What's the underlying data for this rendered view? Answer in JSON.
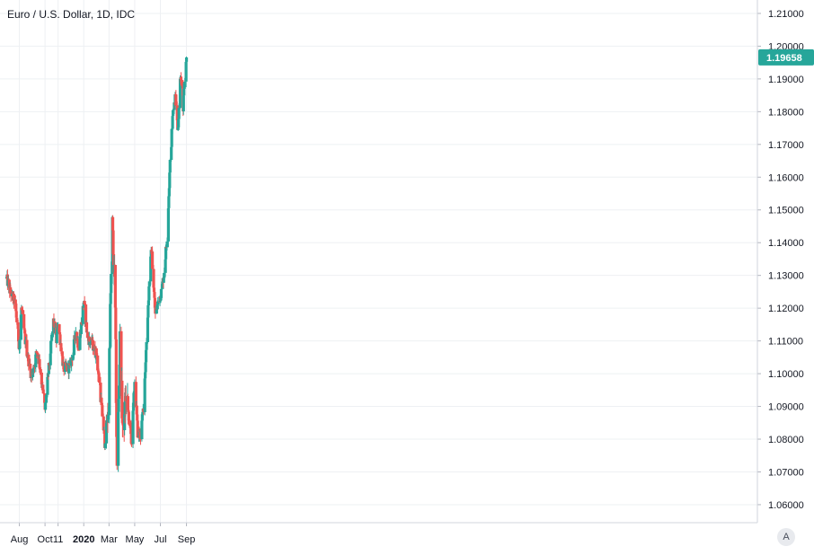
{
  "header": {
    "title": "Euro / U.S. Dollar, 1D, IDC"
  },
  "price_axis": {
    "ticks": [
      "1.06000",
      "1.07000",
      "1.08000",
      "1.09000",
      "1.10000",
      "1.11000",
      "1.12000",
      "1.13000",
      "1.14000",
      "1.15000",
      "1.16000",
      "1.17000",
      "1.18000",
      "1.19000",
      "1.20000",
      "1.21000"
    ],
    "last_price_label": "1.19658"
  },
  "time_axis": {
    "ticks": [
      "Aug",
      "Oct",
      "11",
      "2020",
      "Mar",
      "May",
      "Jul",
      "Sep"
    ]
  },
  "controls": {
    "scale_button": "A"
  },
  "colors": {
    "up": "#26a69a",
    "down": "#ef5350",
    "grid": "#eef0f3",
    "last_price_bg": "#26a69a"
  },
  "chart_data": {
    "type": "candlestick",
    "title": "Euro / U.S. Dollar, 1D, IDC",
    "symbol": "EURUSD",
    "interval": "1D",
    "ylim": [
      1.0545,
      1.2141
    ],
    "grid": true,
    "last_price": 1.19658,
    "series": [
      {
        "name": "Euro / U.S. Dollar",
        "keypoints": [
          [
            "2019-07-02",
            1.129
          ],
          [
            "2019-07-10",
            1.125
          ],
          [
            "2019-07-22",
            1.1215
          ],
          [
            "2019-08-01",
            1.108
          ],
          [
            "2019-08-06",
            1.12
          ],
          [
            "2019-08-16",
            1.109
          ],
          [
            "2019-08-30",
            1.099
          ],
          [
            "2019-09-12",
            1.107
          ],
          [
            "2019-09-18",
            1.103
          ],
          [
            "2019-10-01",
            1.089
          ],
          [
            "2019-10-11",
            1.103
          ],
          [
            "2019-10-21",
            1.116
          ],
          [
            "2019-10-28",
            1.11
          ],
          [
            "2019-11-01",
            1.116
          ],
          [
            "2019-11-14",
            1.1015
          ],
          [
            "2019-11-29",
            1.102
          ],
          [
            "2019-12-06",
            1.106
          ],
          [
            "2019-12-13",
            1.113
          ],
          [
            "2019-12-20",
            1.108
          ],
          [
            "2020-01-01",
            1.122
          ],
          [
            "2020-01-10",
            1.111
          ],
          [
            "2020-01-21",
            1.109
          ],
          [
            "2020-01-31",
            1.106
          ],
          [
            "2020-02-10",
            1.093
          ],
          [
            "2020-02-20",
            1.079
          ],
          [
            "2020-02-28",
            1.089
          ],
          [
            "2020-03-05",
            1.124
          ],
          [
            "2020-03-09",
            1.145
          ],
          [
            "2020-03-16",
            1.118
          ],
          [
            "2020-03-20",
            1.07
          ],
          [
            "2020-03-27",
            1.11
          ],
          [
            "2020-04-03",
            1.081
          ],
          [
            "2020-04-10",
            1.093
          ],
          [
            "2020-04-17",
            1.087
          ],
          [
            "2020-04-24",
            1.079
          ],
          [
            "2020-05-01",
            1.098
          ],
          [
            "2020-05-08",
            1.082
          ],
          [
            "2020-05-15",
            1.081
          ],
          [
            "2020-05-22",
            1.09
          ],
          [
            "2020-05-29",
            1.11
          ],
          [
            "2020-06-05",
            1.129
          ],
          [
            "2020-06-10",
            1.138
          ],
          [
            "2020-06-19",
            1.118
          ],
          [
            "2020-06-26",
            1.122
          ],
          [
            "2020-07-03",
            1.125
          ],
          [
            "2020-07-09",
            1.13
          ],
          [
            "2020-07-17",
            1.142
          ],
          [
            "2020-07-24",
            1.164
          ],
          [
            "2020-07-31",
            1.18
          ],
          [
            "2020-08-06",
            1.186
          ],
          [
            "2020-08-11",
            1.174
          ],
          [
            "2020-08-18",
            1.192
          ],
          [
            "2020-08-24",
            1.181
          ],
          [
            "2020-08-28",
            1.19
          ],
          [
            "2020-09-01",
            1.1966
          ]
        ]
      }
    ]
  }
}
